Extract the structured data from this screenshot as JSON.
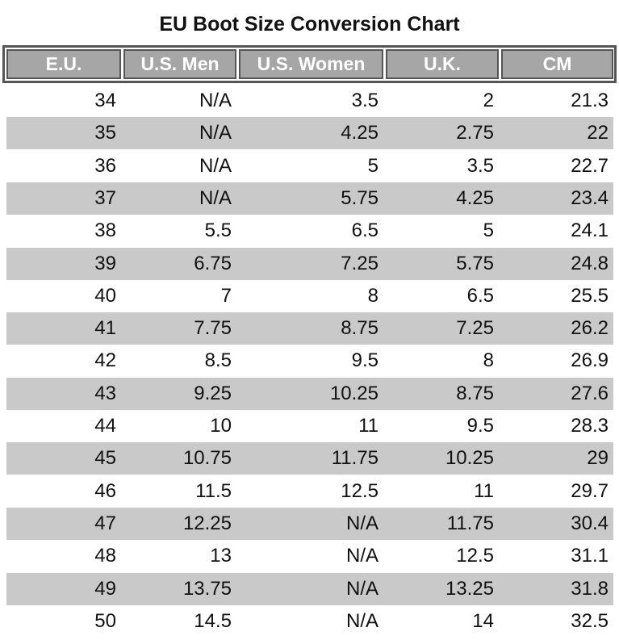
{
  "title": "EU Boot Size Conversion Chart",
  "table": {
    "headers": [
      "E.U.",
      "U.S. Men",
      "U.S. Women",
      "U.K.",
      "CM"
    ],
    "rows": [
      [
        "34",
        "N/A",
        "3.5",
        "2",
        "21.3"
      ],
      [
        "35",
        "N/A",
        "4.25",
        "2.75",
        "22"
      ],
      [
        "36",
        "N/A",
        "5",
        "3.5",
        "22.7"
      ],
      [
        "37",
        "N/A",
        "5.75",
        "4.25",
        "23.4"
      ],
      [
        "38",
        "5.5",
        "6.5",
        "5",
        "24.1"
      ],
      [
        "39",
        "6.75",
        "7.25",
        "5.75",
        "24.8"
      ],
      [
        "40",
        "7",
        "8",
        "6.5",
        "25.5"
      ],
      [
        "41",
        "7.75",
        "8.75",
        "7.25",
        "26.2"
      ],
      [
        "42",
        "8.5",
        "9.5",
        "8",
        "26.9"
      ],
      [
        "43",
        "9.25",
        "10.25",
        "8.75",
        "27.6"
      ],
      [
        "44",
        "10",
        "11",
        "9.5",
        "28.3"
      ],
      [
        "45",
        "10.75",
        "11.75",
        "10.25",
        "29"
      ],
      [
        "46",
        "11.5",
        "12.5",
        "11",
        "29.7"
      ],
      [
        "47",
        "12.25",
        "N/A",
        "11.75",
        "30.4"
      ],
      [
        "48",
        "13",
        "N/A",
        "12.5",
        "31.1"
      ],
      [
        "49",
        "13.75",
        "N/A",
        "13.25",
        "31.8"
      ],
      [
        "50",
        "14.5",
        "N/A",
        "14",
        "32.5"
      ]
    ]
  }
}
